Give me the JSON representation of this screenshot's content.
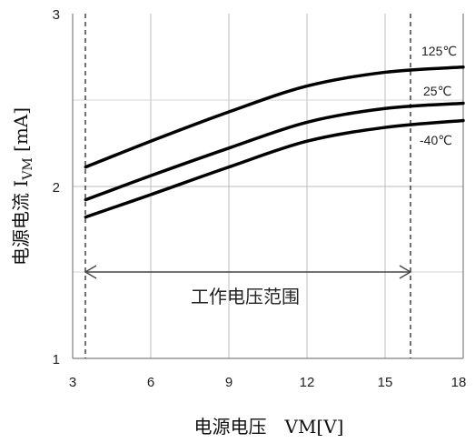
{
  "chart_data": {
    "type": "line",
    "title": "",
    "xlabel": "电源电压　VM[V]",
    "ylabel": "电源电流 I_VM [mA]",
    "ylabel_parts": {
      "main": "电源电流  I",
      "sub": "VM",
      "unit": " [mA]"
    },
    "xlim": [
      3,
      18
    ],
    "ylim": [
      1,
      3
    ],
    "x_ticks": [
      3,
      6,
      9,
      12,
      15,
      18
    ],
    "y_ticks": [
      1,
      2,
      3
    ],
    "grid": true,
    "series": [
      {
        "name": "125℃",
        "color": "#000000",
        "x": [
          3.5,
          6,
          9,
          12,
          15,
          18
        ],
        "y": [
          2.11,
          2.26,
          2.43,
          2.58,
          2.66,
          2.69
        ]
      },
      {
        "name": "25℃",
        "color": "#000000",
        "x": [
          3.5,
          6,
          9,
          12,
          15,
          18
        ],
        "y": [
          1.92,
          2.06,
          2.22,
          2.37,
          2.45,
          2.48
        ]
      },
      {
        "name": "-40℃",
        "color": "#000000",
        "x": [
          3.5,
          6,
          9,
          12,
          15,
          18
        ],
        "y": [
          1.82,
          1.95,
          2.11,
          2.26,
          2.34,
          2.38
        ]
      }
    ],
    "operating_range": {
      "label": "工作电压范围",
      "x_min": 3.5,
      "x_max": 16,
      "y": 1.5
    }
  }
}
